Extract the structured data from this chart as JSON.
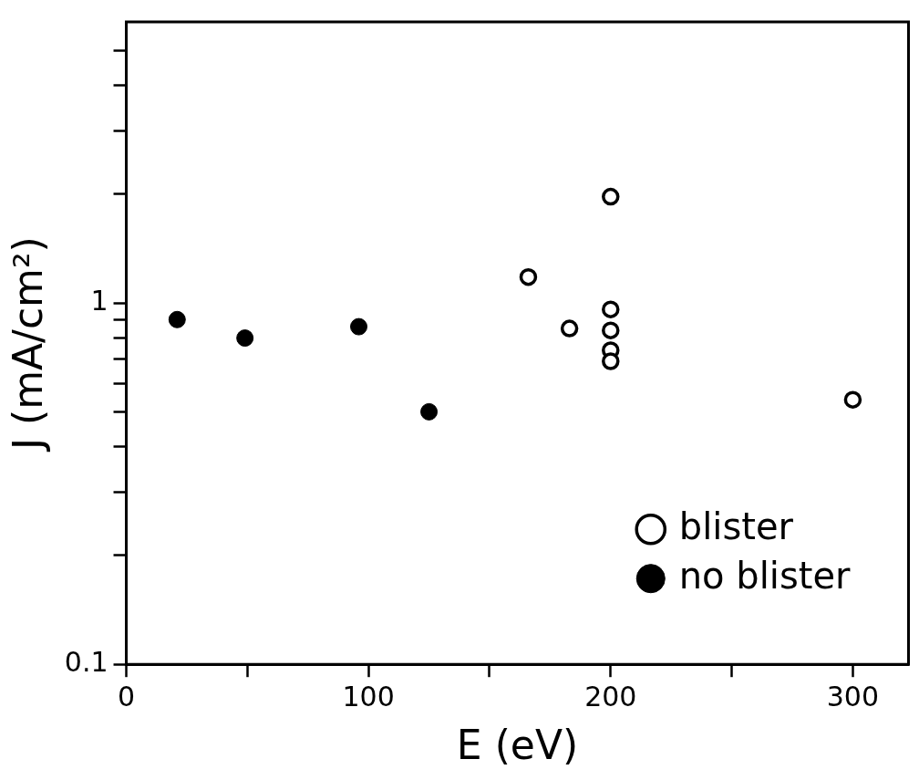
{
  "chart_data": {
    "type": "scatter",
    "xlabel": "E (eV)",
    "ylabel": "J (mA/cm²)",
    "log": "y",
    "grid": false,
    "legend": "bottom right",
    "marker": "circle",
    "xlim": [
      0,
      323
    ],
    "xticks": [
      0,
      {
        "value": 50,
        "label": null
      },
      100,
      {
        "value": 150,
        "label": null
      },
      200,
      {
        "value": 250,
        "label": null
      },
      300
    ],
    "ylim": [
      0.1,
      6
    ],
    "yticks": [
      0.1,
      {
        "value": 0.2,
        "label": null
      },
      {
        "value": 0.3,
        "label": null
      },
      {
        "value": 0.4,
        "label": null
      },
      {
        "value": 0.5,
        "label": null
      },
      {
        "value": 0.6,
        "label": null
      },
      {
        "value": 0.7,
        "label": null
      },
      {
        "value": 0.8,
        "label": null
      },
      {
        "value": 0.9,
        "label": null
      },
      1,
      {
        "value": 2,
        "label": null
      },
      {
        "value": 3,
        "label": null
      },
      {
        "value": 4,
        "label": null
      },
      {
        "value": 5,
        "label": null
      }
    ],
    "series": [
      {
        "name": "blister",
        "color": "#000000",
        "x": [
          166,
          183,
          200,
          200,
          200,
          200,
          200,
          300
        ],
        "values": [
          1.18,
          0.85,
          1.97,
          0.96,
          0.84,
          0.74,
          0.69,
          0.54
        ]
      },
      {
        "name": "no blister",
        "color": "#000000",
        "x": [
          21,
          49,
          96,
          125
        ],
        "values": [
          0.9,
          0.8,
          0.86,
          0.5
        ]
      }
    ]
  }
}
